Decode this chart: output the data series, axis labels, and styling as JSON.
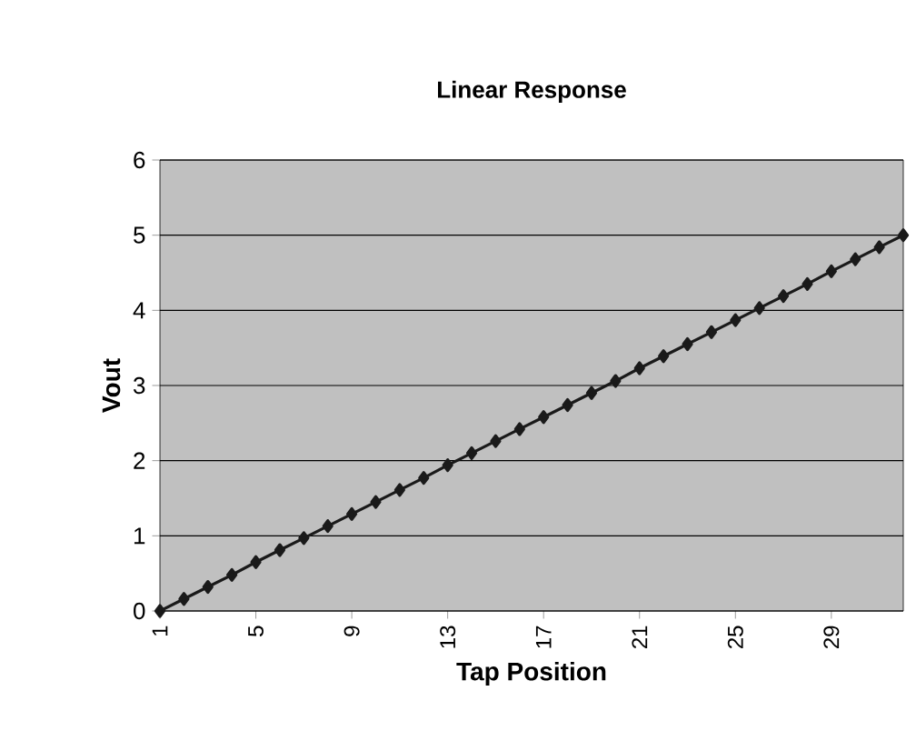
{
  "chart_data": {
    "type": "line",
    "title": "Linear Response",
    "xlabel": "Tap Position",
    "ylabel": "Vout",
    "x": [
      1,
      2,
      3,
      4,
      5,
      6,
      7,
      8,
      9,
      10,
      11,
      12,
      13,
      14,
      15,
      16,
      17,
      18,
      19,
      20,
      21,
      22,
      23,
      24,
      25,
      26,
      27,
      28,
      29,
      30,
      31,
      32
    ],
    "series": [
      {
        "color": "#1a1a1a",
        "values": [
          0,
          0.16,
          0.32,
          0.48,
          0.65,
          0.81,
          0.97,
          1.13,
          1.29,
          1.45,
          1.61,
          1.77,
          1.94,
          2.1,
          2.26,
          2.42,
          2.58,
          2.74,
          2.9,
          3.06,
          3.23,
          3.39,
          3.55,
          3.71,
          3.87,
          4.03,
          4.19,
          4.35,
          4.52,
          4.68,
          4.84,
          5
        ]
      }
    ],
    "xlim": [
      1,
      32
    ],
    "xticks": [
      1,
      5,
      9,
      13,
      17,
      21,
      25,
      29
    ],
    "ylim": [
      0,
      6
    ],
    "yticks": [
      0,
      1,
      2,
      3,
      4,
      5,
      6
    ],
    "grid": "y",
    "marker": "diamond",
    "line_style": "solid"
  }
}
